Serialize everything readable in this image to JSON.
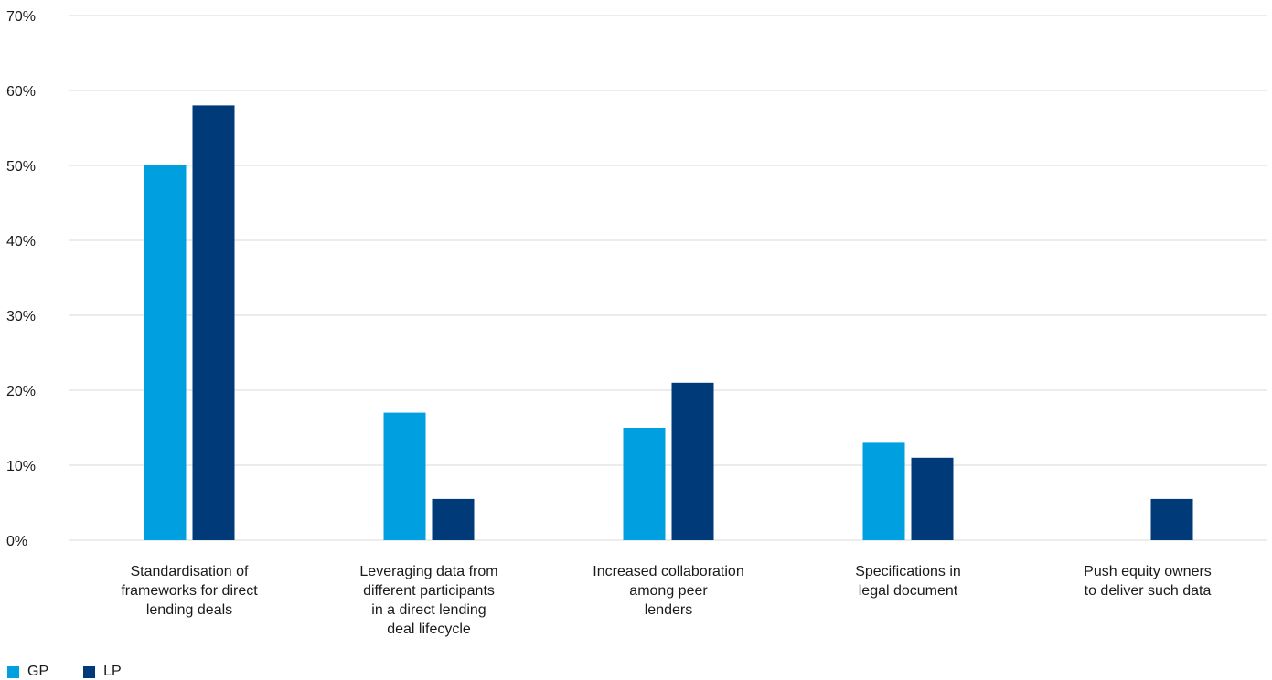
{
  "colors": {
    "GP": "#009fdf",
    "LP": "#003a78",
    "grid": "#d9d9d9"
  },
  "chart_data": {
    "type": "bar",
    "categories": [
      [
        "Standardisation of",
        "frameworks for direct",
        "lending deals"
      ],
      [
        "Leveraging data from",
        "different participants",
        "in a direct lending",
        "deal lifecycle"
      ],
      [
        "Increased collaboration",
        "among peer",
        "lenders"
      ],
      [
        "Specifications in",
        "legal document"
      ],
      [
        "Push equity owners",
        "to deliver such data"
      ]
    ],
    "series": [
      {
        "name": "GP",
        "values": [
          50,
          17,
          15,
          13,
          0
        ]
      },
      {
        "name": "LP",
        "values": [
          58,
          5.5,
          21,
          11,
          5.5
        ]
      }
    ],
    "ylim": [
      0,
      70
    ],
    "yticks": [
      "0%",
      "10%",
      "20%",
      "30%",
      "40%",
      "50%",
      "60%",
      "70%"
    ],
    "grid": true,
    "legend": "bottom-left",
    "title": "",
    "xlabel": "",
    "ylabel": ""
  }
}
